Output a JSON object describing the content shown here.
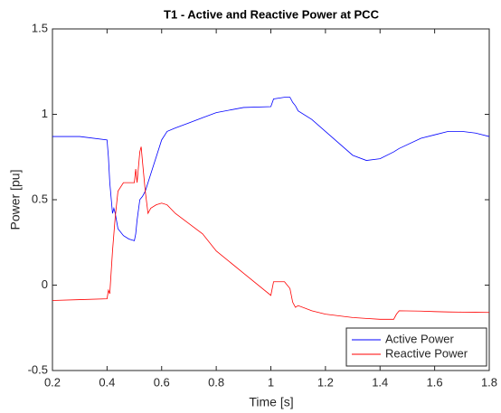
{
  "chart_data": {
    "type": "line",
    "title": "T1 - Active and Reactive Power at PCC",
    "xlabel": "Time [s]",
    "ylabel": "Power [pu]",
    "x": [
      0.2,
      0.3,
      0.4,
      0.405,
      0.41,
      0.42,
      0.425,
      0.43,
      0.44,
      0.46,
      0.48,
      0.5,
      0.505,
      0.51,
      0.52,
      0.525,
      0.53,
      0.54,
      0.55,
      0.56,
      0.58,
      0.6,
      0.62,
      0.65,
      0.7,
      0.75,
      0.8,
      0.9,
      1.0,
      1.01,
      1.05,
      1.07,
      1.08,
      1.09,
      1.1,
      1.15,
      1.2,
      1.3,
      1.35,
      1.4,
      1.45,
      1.46,
      1.47,
      1.55,
      1.6,
      1.65,
      1.7,
      1.75,
      1.8
    ],
    "series": [
      {
        "name": "Active Power",
        "color": "#0000ff",
        "values": [
          0.87,
          0.87,
          0.85,
          0.75,
          0.6,
          0.42,
          0.45,
          0.42,
          0.33,
          0.29,
          0.27,
          0.26,
          0.3,
          0.38,
          0.5,
          0.51,
          0.52,
          0.55,
          0.6,
          0.65,
          0.75,
          0.85,
          0.9,
          0.92,
          0.95,
          0.98,
          1.01,
          1.04,
          1.045,
          1.09,
          1.1,
          1.1,
          1.07,
          1.05,
          1.02,
          0.97,
          0.9,
          0.76,
          0.73,
          0.74,
          0.78,
          0.79,
          0.8,
          0.86,
          0.88,
          0.9,
          0.9,
          0.89,
          0.87
        ]
      },
      {
        "name": "Reactive Power",
        "color": "#ff0000",
        "values": [
          -0.09,
          -0.085,
          -0.08,
          -0.03,
          -0.05,
          0.2,
          0.3,
          0.4,
          0.55,
          0.6,
          0.6,
          0.6,
          0.68,
          0.6,
          0.78,
          0.81,
          0.72,
          0.55,
          0.42,
          0.45,
          0.47,
          0.48,
          0.47,
          0.42,
          0.36,
          0.3,
          0.2,
          0.07,
          -0.06,
          0.02,
          0.02,
          -0.02,
          -0.1,
          -0.13,
          -0.12,
          -0.15,
          -0.17,
          -0.19,
          -0.195,
          -0.2,
          -0.2,
          -0.17,
          -0.15,
          -0.152,
          -0.155,
          -0.157,
          -0.158,
          -0.159,
          -0.16
        ]
      }
    ],
    "xlim": [
      0.2,
      1.8
    ],
    "xticks": [
      0.2,
      0.4,
      0.6,
      0.8,
      1,
      1.2,
      1.4,
      1.6,
      1.8
    ],
    "ylim": [
      -0.5,
      1.5
    ],
    "yticks": [
      -0.5,
      0,
      0.5,
      1,
      1.5
    ],
    "grid": false,
    "legend": "southeast"
  }
}
